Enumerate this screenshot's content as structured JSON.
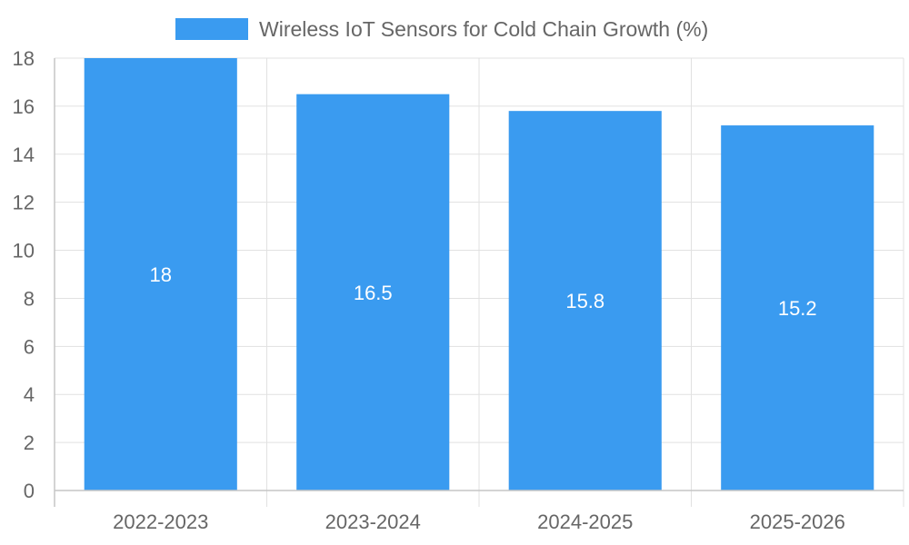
{
  "chart_data": {
    "type": "bar",
    "title": "",
    "xlabel": "",
    "ylabel": "",
    "categories": [
      "2022-2023",
      "2023-2024",
      "2024-2025",
      "2025-2026"
    ],
    "series": [
      {
        "name": "Wireless IoT Sensors for Cold Chain Growth (%)",
        "values": [
          18,
          16.5,
          15.8,
          15.2
        ],
        "color": "#3a9bf0"
      }
    ],
    "ylim": [
      0,
      18
    ],
    "yticks": [
      "0",
      "2",
      "4",
      "6",
      "8",
      "10",
      "12",
      "14",
      "16",
      "18"
    ],
    "data_labels": [
      "18",
      "16.5",
      "15.8",
      "15.2"
    ],
    "grid": true,
    "legend_position": "top-center"
  }
}
